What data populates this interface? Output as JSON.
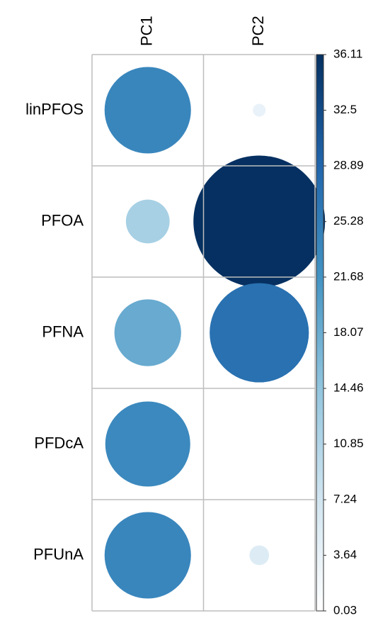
{
  "chart_data": {
    "type": "corrplot",
    "columns": [
      "PC1",
      "PC2"
    ],
    "rows": [
      "linPFOS",
      "PFOA",
      "PFNA",
      "PFDcA",
      "PFUnA"
    ],
    "series": [
      {
        "name": "PC1",
        "values": [
          23.7,
          12.0,
          18.3,
          23.3,
          23.7
        ]
      },
      {
        "name": "PC2",
        "values": [
          3.5,
          36.11,
          27.2,
          0.03,
          5.4
        ]
      }
    ],
    "colorlim": [
      0.03,
      36.11
    ],
    "colorticks": [
      0.03,
      3.64,
      7.24,
      10.85,
      14.46,
      18.07,
      21.68,
      25.28,
      28.89,
      32.5,
      36.11
    ],
    "colorscale": [
      "#ffffff",
      "#d1e5f0",
      "#92c5de",
      "#4393c3",
      "#2166ac",
      "#053061"
    ],
    "grid": true
  }
}
